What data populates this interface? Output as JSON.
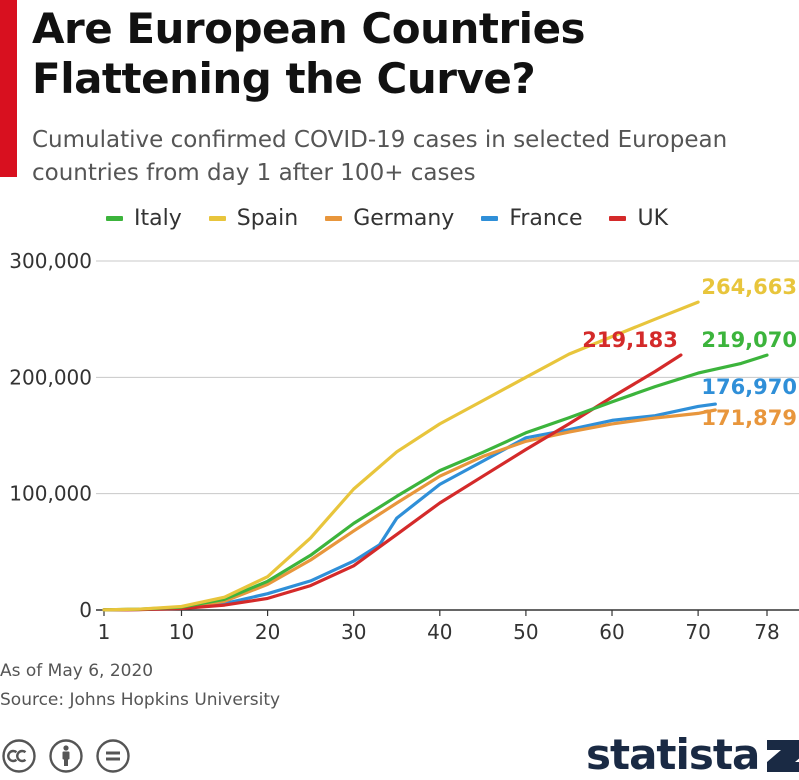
{
  "header": {
    "title": "Are European Countries Flattening the Curve?",
    "subtitle": "Cumulative confirmed COVID-19 cases in selected European countries from day 1 after 100+ cases"
  },
  "legend": [
    {
      "label": "Italy",
      "color": "#3cb43c"
    },
    {
      "label": "Spain",
      "color": "#e8c53c"
    },
    {
      "label": "Germany",
      "color": "#e8963c"
    },
    {
      "label": "France",
      "color": "#2f8fd8"
    },
    {
      "label": "UK",
      "color": "#d42a2a"
    }
  ],
  "footer": {
    "as_of": "As of May 6, 2020",
    "source": "Source: Johns Hopkins University",
    "logo_text": "statista",
    "icons": [
      "cc-icon",
      "attribution-icon",
      "no-derivatives-icon"
    ]
  },
  "chart_data": {
    "type": "line",
    "title": "Are European Countries Flattening the Curve?",
    "subtitle": "Cumulative confirmed COVID-19 cases in selected European countries from day 1 after 100+ cases",
    "xlabel": "",
    "ylabel": "",
    "xlim": [
      1,
      78
    ],
    "ylim": [
      0,
      300000
    ],
    "x_ticks": [
      1,
      10,
      20,
      30,
      40,
      50,
      60,
      70,
      78
    ],
    "x_tick_labels": [
      "1",
      "10",
      "20",
      "30",
      "40",
      "50",
      "60",
      "70",
      "78"
    ],
    "y_ticks": [
      0,
      100000,
      200000,
      300000
    ],
    "y_tick_labels": [
      "0",
      "100,000",
      "200,000",
      "300,000"
    ],
    "grid": "horizontal",
    "legend_position": "top",
    "series": [
      {
        "name": "Italy",
        "color": "#3cb43c",
        "end_label": "219,070",
        "points": [
          [
            1,
            155
          ],
          [
            5,
            650
          ],
          [
            10,
            2500
          ],
          [
            15,
            9200
          ],
          [
            20,
            24700
          ],
          [
            25,
            47000
          ],
          [
            30,
            74400
          ],
          [
            35,
            97700
          ],
          [
            40,
            119800
          ],
          [
            45,
            135600
          ],
          [
            50,
            152300
          ],
          [
            55,
            165200
          ],
          [
            60,
            178900
          ],
          [
            65,
            192000
          ],
          [
            70,
            203600
          ],
          [
            75,
            212000
          ],
          [
            78,
            219070
          ]
        ]
      },
      {
        "name": "Spain",
        "color": "#e8c53c",
        "end_label": "264,663",
        "points": [
          [
            1,
            150
          ],
          [
            5,
            700
          ],
          [
            10,
            3000
          ],
          [
            15,
            11000
          ],
          [
            20,
            28600
          ],
          [
            25,
            62000
          ],
          [
            30,
            104000
          ],
          [
            35,
            136000
          ],
          [
            40,
            160000
          ],
          [
            45,
            180000
          ],
          [
            50,
            200000
          ],
          [
            55,
            220000
          ],
          [
            60,
            235000
          ],
          [
            65,
            250000
          ],
          [
            70,
            264663
          ]
        ]
      },
      {
        "name": "Germany",
        "color": "#e8963c",
        "end_label": "171,879",
        "points": [
          [
            1,
            130
          ],
          [
            5,
            500
          ],
          [
            10,
            2000
          ],
          [
            15,
            7500
          ],
          [
            20,
            22000
          ],
          [
            25,
            43000
          ],
          [
            30,
            68000
          ],
          [
            35,
            92000
          ],
          [
            40,
            115000
          ],
          [
            45,
            132000
          ],
          [
            50,
            145000
          ],
          [
            55,
            153000
          ],
          [
            60,
            160000
          ],
          [
            65,
            165000
          ],
          [
            70,
            169000
          ],
          [
            72,
            171879
          ]
        ]
      },
      {
        "name": "France",
        "color": "#2f8fd8",
        "end_label": "176,970",
        "points": [
          [
            1,
            130
          ],
          [
            5,
            400
          ],
          [
            10,
            1500
          ],
          [
            15,
            5500
          ],
          [
            20,
            14000
          ],
          [
            25,
            25000
          ],
          [
            30,
            42000
          ],
          [
            33,
            56000
          ],
          [
            35,
            79000
          ],
          [
            40,
            108000
          ],
          [
            45,
            128000
          ],
          [
            50,
            148000
          ],
          [
            55,
            155000
          ],
          [
            60,
            163000
          ],
          [
            65,
            167000
          ],
          [
            70,
            175000
          ],
          [
            72,
            176970
          ]
        ]
      },
      {
        "name": "UK",
        "color": "#d42a2a",
        "end_label": "219,183",
        "points": [
          [
            1,
            120
          ],
          [
            5,
            300
          ],
          [
            10,
            1300
          ],
          [
            15,
            4200
          ],
          [
            20,
            10000
          ],
          [
            25,
            21000
          ],
          [
            30,
            38000
          ],
          [
            35,
            65000
          ],
          [
            40,
            92000
          ],
          [
            45,
            115000
          ],
          [
            50,
            138000
          ],
          [
            55,
            160000
          ],
          [
            60,
            183000
          ],
          [
            65,
            205000
          ],
          [
            68,
            219183
          ]
        ]
      }
    ]
  }
}
